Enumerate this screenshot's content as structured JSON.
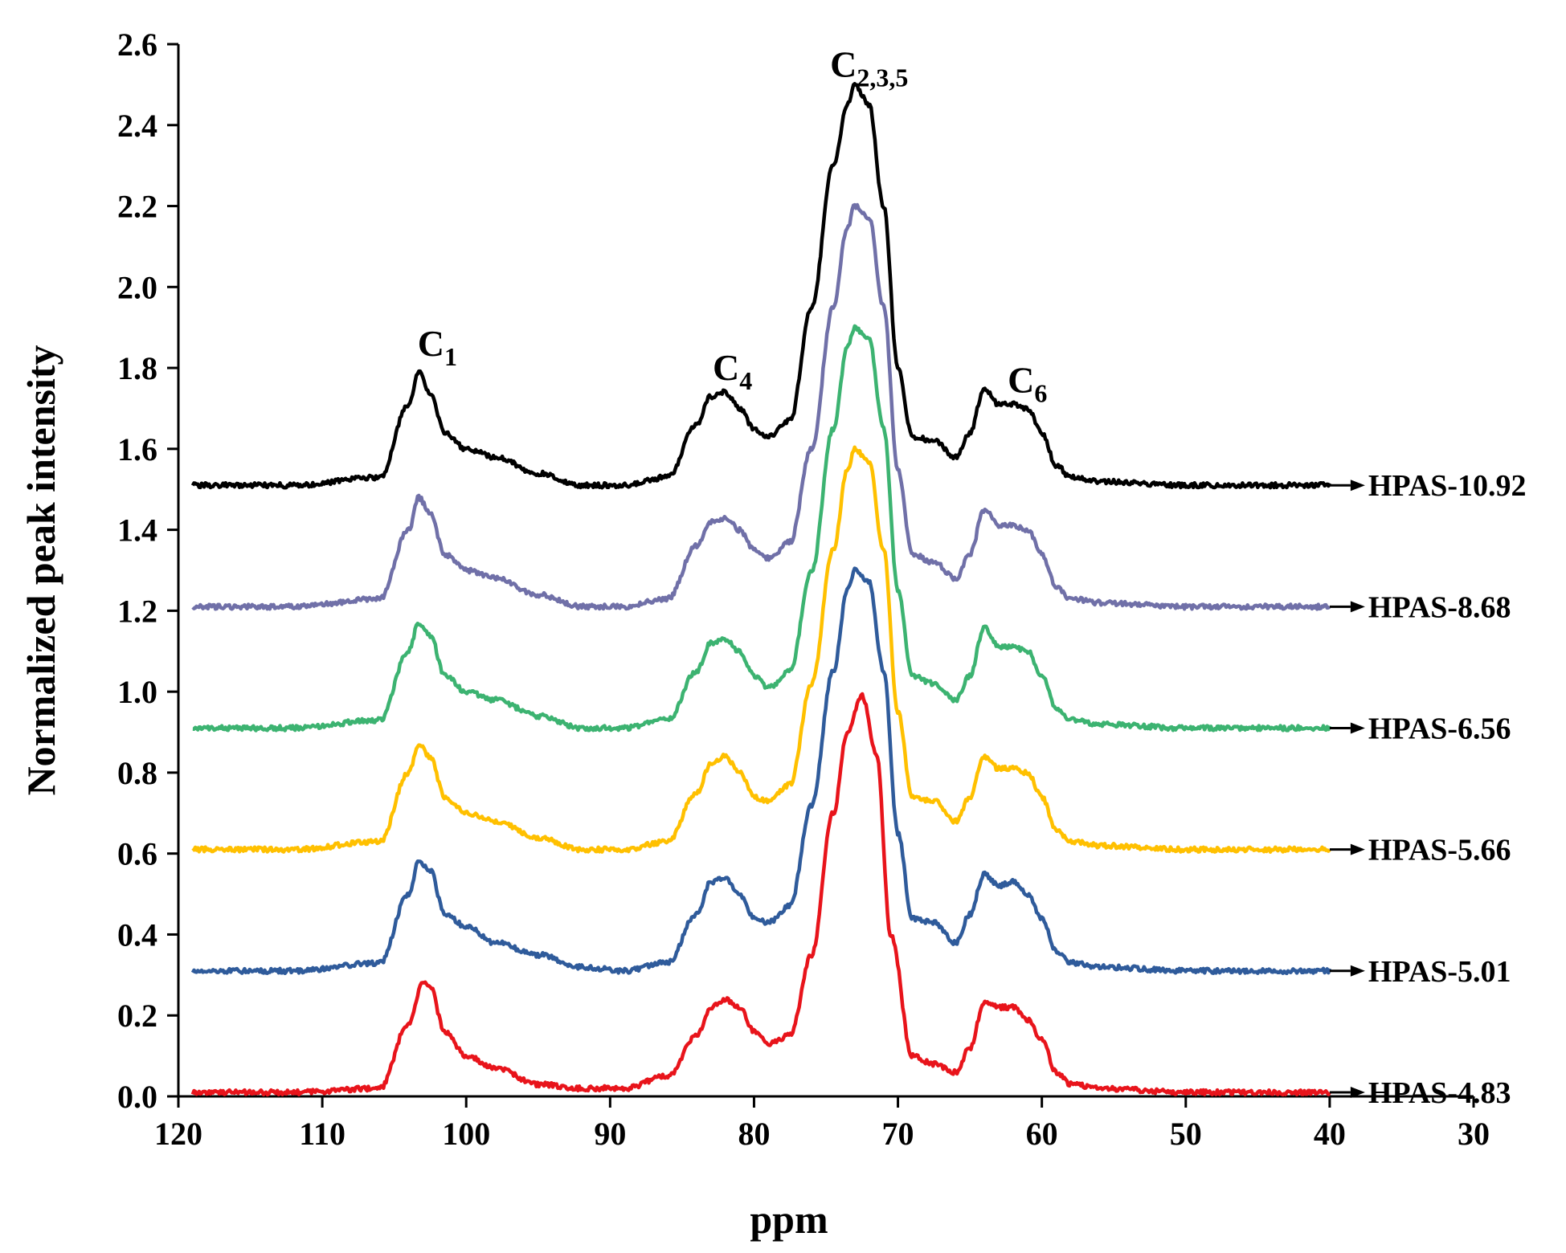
{
  "chart_data": {
    "type": "line",
    "xlabel": "ppm",
    "ylabel": "Normalized peak intensity",
    "xlim": [
      120,
      30
    ],
    "ylim": [
      0.0,
      2.6
    ],
    "xticks": [
      "120",
      "110",
      "100",
      "90",
      "80",
      "70",
      "60",
      "50",
      "40",
      "30"
    ],
    "yticks": [
      "0.0",
      "0.2",
      "0.4",
      "0.6",
      "0.8",
      "1.0",
      "1.2",
      "1.4",
      "1.6",
      "1.8",
      "2.0",
      "2.2",
      "2.4",
      "2.6"
    ],
    "peak_labels": [
      {
        "base": "C",
        "sub": "1",
        "ppm": 102.0,
        "y": 1.83
      },
      {
        "base": "C",
        "sub": "4",
        "ppm": 81.5,
        "y": 1.77
      },
      {
        "base": "C",
        "sub": "2,3,5",
        "ppm": 72.0,
        "y": 2.52
      },
      {
        "base": "C",
        "sub": "6",
        "ppm": 61.0,
        "y": 1.74
      }
    ],
    "series": [
      {
        "name": "HPAS-4.83",
        "color": "#e8141b",
        "offset": 0.01,
        "x": [
          119,
          112,
          106,
          104,
          103,
          102.5,
          101.5,
          100,
          98,
          95,
          92,
          89,
          86,
          84,
          83,
          82,
          81,
          80,
          79,
          77.5,
          76,
          74.5,
          73.5,
          72.5,
          71.5,
          70.5,
          69,
          67.5,
          66,
          65,
          64,
          63,
          62,
          61,
          60,
          59,
          58,
          56,
          50,
          45,
          40
        ],
        "values": [
          0.01,
          0.01,
          0.02,
          0.18,
          0.28,
          0.27,
          0.16,
          0.1,
          0.07,
          0.03,
          0.02,
          0.02,
          0.05,
          0.15,
          0.22,
          0.24,
          0.22,
          0.16,
          0.13,
          0.15,
          0.35,
          0.7,
          0.9,
          0.99,
          0.85,
          0.4,
          0.1,
          0.08,
          0.06,
          0.12,
          0.23,
          0.22,
          0.22,
          0.19,
          0.14,
          0.06,
          0.03,
          0.02,
          0.01,
          0.01,
          0.01
        ]
      },
      {
        "name": "HPAS-5.01",
        "color": "#2f5b9b",
        "offset": 0.31,
        "x": [
          119,
          112,
          106,
          104,
          103.3,
          102.5,
          101.5,
          100,
          98,
          95,
          92,
          89,
          86,
          84,
          83,
          82,
          81,
          80,
          79,
          77.5,
          76,
          74.5,
          73.5,
          73,
          72,
          71,
          70,
          69,
          67.5,
          66,
          65,
          64,
          63,
          62,
          61,
          60,
          59,
          58,
          56,
          50,
          45,
          40
        ],
        "values": [
          0.31,
          0.31,
          0.33,
          0.5,
          0.58,
          0.56,
          0.45,
          0.42,
          0.38,
          0.35,
          0.32,
          0.31,
          0.33,
          0.45,
          0.53,
          0.54,
          0.5,
          0.44,
          0.43,
          0.47,
          0.72,
          1.05,
          1.25,
          1.3,
          1.27,
          1.05,
          0.65,
          0.44,
          0.43,
          0.38,
          0.45,
          0.55,
          0.52,
          0.53,
          0.5,
          0.44,
          0.36,
          0.33,
          0.32,
          0.31,
          0.31,
          0.31
        ]
      },
      {
        "name": "HPAS-5.66",
        "color": "#ffc000",
        "offset": 0.61,
        "x": [
          119,
          112,
          106,
          104,
          103.3,
          102.5,
          101.5,
          100,
          98,
          95,
          92,
          89,
          86,
          84,
          83,
          82,
          81,
          80,
          79,
          77.5,
          76,
          74.5,
          73.5,
          73,
          72,
          71,
          70,
          69,
          67.5,
          66,
          65,
          64,
          63,
          62,
          61,
          60,
          59,
          58,
          56,
          50,
          45,
          40
        ],
        "values": [
          0.61,
          0.61,
          0.63,
          0.8,
          0.87,
          0.84,
          0.74,
          0.7,
          0.68,
          0.64,
          0.61,
          0.61,
          0.63,
          0.75,
          0.82,
          0.84,
          0.8,
          0.74,
          0.73,
          0.77,
          1.02,
          1.35,
          1.55,
          1.6,
          1.57,
          1.35,
          0.95,
          0.74,
          0.73,
          0.68,
          0.74,
          0.84,
          0.81,
          0.81,
          0.8,
          0.74,
          0.66,
          0.63,
          0.62,
          0.61,
          0.61,
          0.61
        ]
      },
      {
        "name": "HPAS-6.56",
        "color": "#3cb371",
        "offset": 0.91,
        "x": [
          119,
          112,
          106,
          104,
          103.3,
          102.5,
          101.5,
          100,
          98,
          95,
          92,
          89,
          86,
          84,
          83,
          82,
          81,
          80,
          79,
          77.5,
          76,
          74.5,
          73.5,
          73,
          72,
          71,
          70,
          69,
          67.5,
          66,
          65,
          64,
          63,
          62,
          61,
          60,
          59,
          58,
          56,
          50,
          45,
          40
        ],
        "values": [
          0.91,
          0.91,
          0.93,
          1.1,
          1.17,
          1.14,
          1.04,
          1.0,
          0.98,
          0.94,
          0.91,
          0.91,
          0.93,
          1.05,
          1.12,
          1.13,
          1.1,
          1.04,
          1.01,
          1.05,
          1.3,
          1.65,
          1.85,
          1.9,
          1.87,
          1.65,
          1.25,
          1.04,
          1.02,
          0.98,
          1.04,
          1.16,
          1.11,
          1.11,
          1.1,
          1.04,
          0.96,
          0.93,
          0.92,
          0.91,
          0.91,
          0.91
        ]
      },
      {
        "name": "HPAS-8.68",
        "color": "#7070a8",
        "offset": 1.21,
        "x": [
          119,
          112,
          106,
          104,
          103.3,
          102.5,
          101.5,
          100,
          98,
          95,
          92,
          89,
          86,
          84,
          83,
          82,
          81,
          80,
          79,
          77.5,
          76,
          74.5,
          73.5,
          73,
          72,
          71,
          70,
          69,
          67.5,
          66,
          65,
          64,
          63,
          62,
          61,
          60,
          59,
          58,
          56,
          50,
          45,
          40
        ],
        "values": [
          1.21,
          1.21,
          1.23,
          1.4,
          1.48,
          1.44,
          1.34,
          1.3,
          1.28,
          1.24,
          1.21,
          1.21,
          1.23,
          1.36,
          1.42,
          1.43,
          1.4,
          1.35,
          1.33,
          1.37,
          1.6,
          1.95,
          2.15,
          2.2,
          2.17,
          1.95,
          1.55,
          1.34,
          1.32,
          1.28,
          1.34,
          1.45,
          1.41,
          1.41,
          1.4,
          1.34,
          1.26,
          1.23,
          1.22,
          1.21,
          1.21,
          1.21
        ]
      },
      {
        "name": "HPAS-10.92",
        "color": "#000000",
        "offset": 1.51,
        "x": [
          119,
          112,
          106,
          104,
          103.3,
          102.5,
          101.5,
          100,
          98,
          95,
          92,
          89,
          86,
          84,
          83,
          82,
          81,
          80,
          79,
          77.5,
          76,
          74.5,
          73.5,
          73,
          72,
          71,
          70,
          69,
          67.5,
          66,
          65,
          64,
          63,
          62,
          61,
          60,
          59,
          58,
          56,
          50,
          45,
          40
        ],
        "values": [
          1.51,
          1.51,
          1.53,
          1.71,
          1.79,
          1.74,
          1.64,
          1.6,
          1.58,
          1.54,
          1.51,
          1.51,
          1.53,
          1.66,
          1.73,
          1.74,
          1.7,
          1.65,
          1.63,
          1.67,
          1.95,
          2.3,
          2.45,
          2.5,
          2.45,
          2.2,
          1.8,
          1.63,
          1.62,
          1.58,
          1.64,
          1.75,
          1.71,
          1.71,
          1.7,
          1.64,
          1.56,
          1.53,
          1.52,
          1.51,
          1.51,
          1.51
        ]
      }
    ]
  }
}
